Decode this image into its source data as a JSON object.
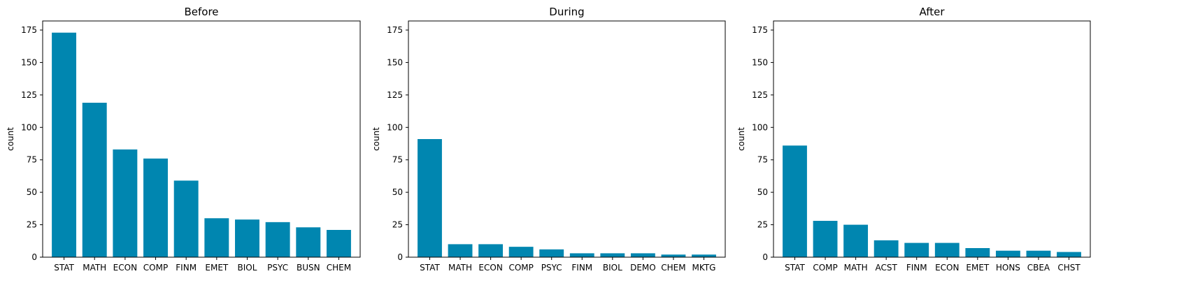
{
  "chart_data": [
    {
      "type": "bar",
      "title": "Before",
      "xlabel": "",
      "ylabel": "count",
      "ylim": [
        0,
        182
      ],
      "yticks": [
        0,
        25,
        50,
        75,
        100,
        125,
        150,
        175
      ],
      "categories": [
        "STAT",
        "MATH",
        "ECON",
        "COMP",
        "FINM",
        "EMET",
        "BIOL",
        "PSYC",
        "BUSN",
        "CHEM"
      ],
      "values": [
        173,
        119,
        83,
        76,
        59,
        30,
        29,
        27,
        23,
        21
      ],
      "color": "#0086b0",
      "grid": false
    },
    {
      "type": "bar",
      "title": "During",
      "xlabel": "",
      "ylabel": "count",
      "ylim": [
        0,
        182
      ],
      "yticks": [
        0,
        25,
        50,
        75,
        100,
        125,
        150,
        175
      ],
      "categories": [
        "STAT",
        "MATH",
        "ECON",
        "COMP",
        "PSYC",
        "FINM",
        "BIOL",
        "DEMO",
        "CHEM",
        "MKTG"
      ],
      "values": [
        91,
        10,
        10,
        8,
        6,
        3,
        3,
        3,
        2,
        2
      ],
      "color": "#0086b0",
      "grid": false
    },
    {
      "type": "bar",
      "title": "After",
      "xlabel": "",
      "ylabel": "count",
      "ylim": [
        0,
        182
      ],
      "yticks": [
        0,
        25,
        50,
        75,
        100,
        125,
        150,
        175
      ],
      "categories": [
        "STAT",
        "COMP",
        "MATH",
        "ACST",
        "FINM",
        "ECON",
        "EMET",
        "HONS",
        "CBEA",
        "CHST"
      ],
      "values": [
        86,
        28,
        25,
        13,
        11,
        11,
        7,
        5,
        5,
        4
      ],
      "color": "#0086b0",
      "grid": false
    }
  ]
}
